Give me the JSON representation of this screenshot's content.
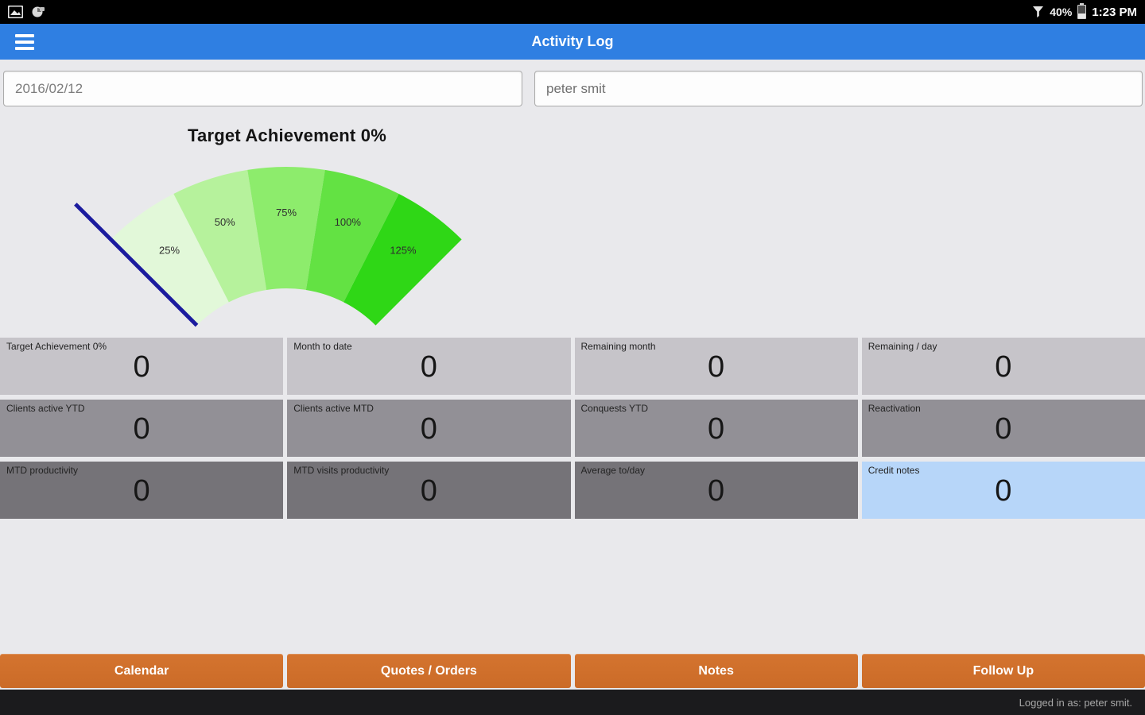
{
  "status_bar": {
    "battery_percent": "40%",
    "time": "1:23 PM",
    "left_icons": [
      "image-icon",
      "screenshot-icon"
    ],
    "right_icons": [
      "signal-icon",
      "battery-icon"
    ]
  },
  "app_bar": {
    "title": "Activity Log"
  },
  "filters": {
    "date_value": "2016/02/12",
    "agent_value": "peter smit"
  },
  "chart_data": {
    "type": "gauge",
    "title": "Target Achievement 0%",
    "value_percent": 0,
    "angle_start_deg": 135,
    "angle_end_deg": 45,
    "center": [
      290,
      327
    ],
    "inner_radius": 159,
    "outer_radius": 312,
    "label_radius": 250,
    "label_color": "#2f2f2f",
    "segments": [
      {
        "label": "25%",
        "color": "#e2f8d9"
      },
      {
        "label": "50%",
        "color": "#b6f29c"
      },
      {
        "label": "75%",
        "color": "#8dec6c"
      },
      {
        "label": "100%",
        "color": "#63e243"
      },
      {
        "label": "125%",
        "color": "#2fd716"
      }
    ],
    "needle": {
      "angle_deg": 135,
      "r_from": 159,
      "r_to": 375,
      "color": "#1b1b9e",
      "width": 5
    }
  },
  "metrics": {
    "cards": [
      {
        "label": "Target Achievement 0%",
        "value": "0"
      },
      {
        "label": "Month to date",
        "value": "0"
      },
      {
        "label": "Remaining month",
        "value": "0"
      },
      {
        "label": "Remaining / day",
        "value": "0"
      },
      {
        "label": "Clients active YTD",
        "value": "0"
      },
      {
        "label": "Clients active MTD",
        "value": "0"
      },
      {
        "label": "Conquests YTD",
        "value": "0"
      },
      {
        "label": "Reactivation",
        "value": "0"
      },
      {
        "label": "MTD productivity",
        "value": "0"
      },
      {
        "label": "MTD visits productivity",
        "value": "0"
      },
      {
        "label": "Average to/day",
        "value": "0"
      },
      {
        "label": "Credit notes",
        "value": "0"
      }
    ]
  },
  "actions": {
    "items": [
      "Calendar",
      "Quotes / Orders",
      "Notes",
      "Follow Up"
    ]
  },
  "footer": {
    "logged_in": "Logged in as: peter smit."
  },
  "colors": {
    "app_bar": "#2f7fe2",
    "action_button": "#d0702c",
    "card_row1": "#c6c4c9",
    "card_row2": "#929096",
    "card_row3": "#757378",
    "card_highlight": "#b7d6f9"
  }
}
